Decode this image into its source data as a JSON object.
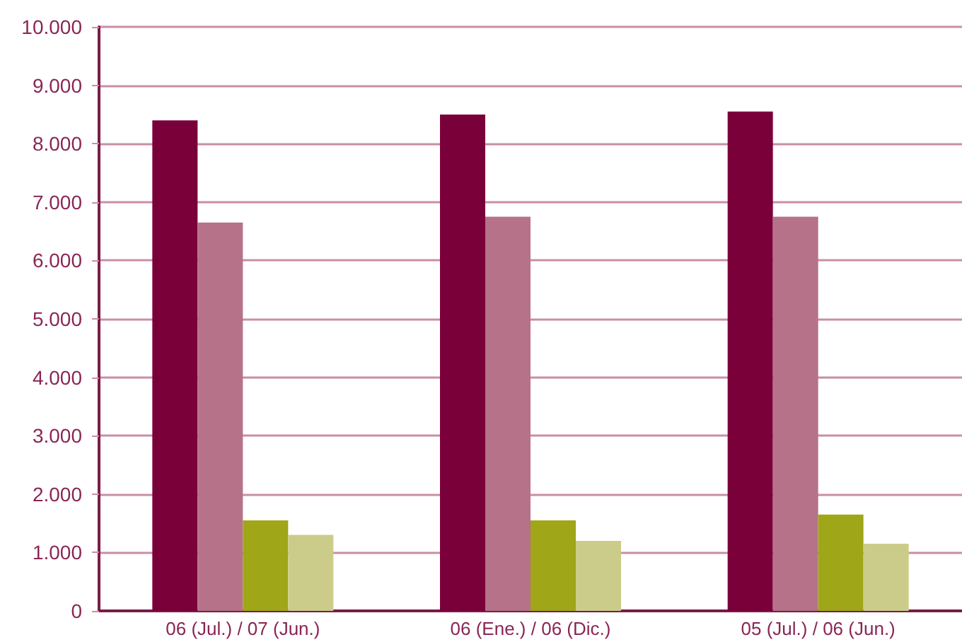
{
  "chart_data": {
    "type": "bar",
    "categories": [
      "06 (Jul.) / 07 (Jun.)",
      "06 (Ene.) / 06 (Dic.)",
      "05 (Jul.) / 06 (Jun.)"
    ],
    "series": [
      {
        "color": "#7a003a",
        "values": [
          8400,
          8500,
          8550
        ]
      },
      {
        "color": "#b57289",
        "values": [
          6650,
          6750,
          6750
        ]
      },
      {
        "color": "#9fa617",
        "values": [
          1550,
          1550,
          1650
        ]
      },
      {
        "color": "#cccc8a",
        "values": [
          1300,
          1200,
          1150
        ]
      }
    ],
    "ylim": [
      0,
      10000
    ],
    "yticks": [
      0,
      {
        "value": 1000,
        "label": "1.000"
      },
      {
        "value": 2000,
        "label": "2.000"
      },
      {
        "value": 3000,
        "label": "3.000"
      },
      {
        "value": 4000,
        "label": "4.000"
      },
      {
        "value": 5000,
        "label": "5.000"
      },
      {
        "value": 6000,
        "label": "6.000"
      },
      {
        "value": 7000,
        "label": "7.000"
      },
      {
        "value": 8000,
        "label": "8.000"
      },
      {
        "value": 9000,
        "label": "9.000"
      },
      {
        "value": 10000,
        "label": "10.000"
      }
    ],
    "grid": "y"
  }
}
